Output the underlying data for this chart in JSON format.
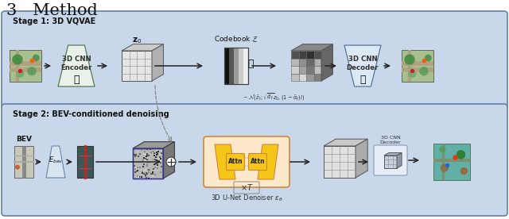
{
  "title": "3   Method",
  "stage1_label": "Stage 1: 3D VQVAE",
  "stage2_label": "Stage 2: BEV-conditioned denoising",
  "bg_color": "#ffffff",
  "stage_bg": "#c8d8e8",
  "stage_edge": "#6080a0",
  "z0_label": "$\\mathbf{z}_0$",
  "codebook_label": "Codebook $\\mathcal{Z}$",
  "bev_label": "BEV",
  "fbev_label": "$E_{bev}$",
  "unet_label": "3D U-Net Denoiser $\\epsilon_\\theta$",
  "xT_label": "$\\times T$",
  "noise_label": "~ $\\mathcal{N}(\\bar{z}_t; \\sqrt{\\bar{\\alpha}_t}z_0, (1-\\bar{\\alpha}_t)I)$",
  "encoder_fill": "#e8f2e8",
  "decoder_fill": "#dde8f5",
  "unet_fill": "#fce8cc",
  "attn_fill": "#f5c518"
}
